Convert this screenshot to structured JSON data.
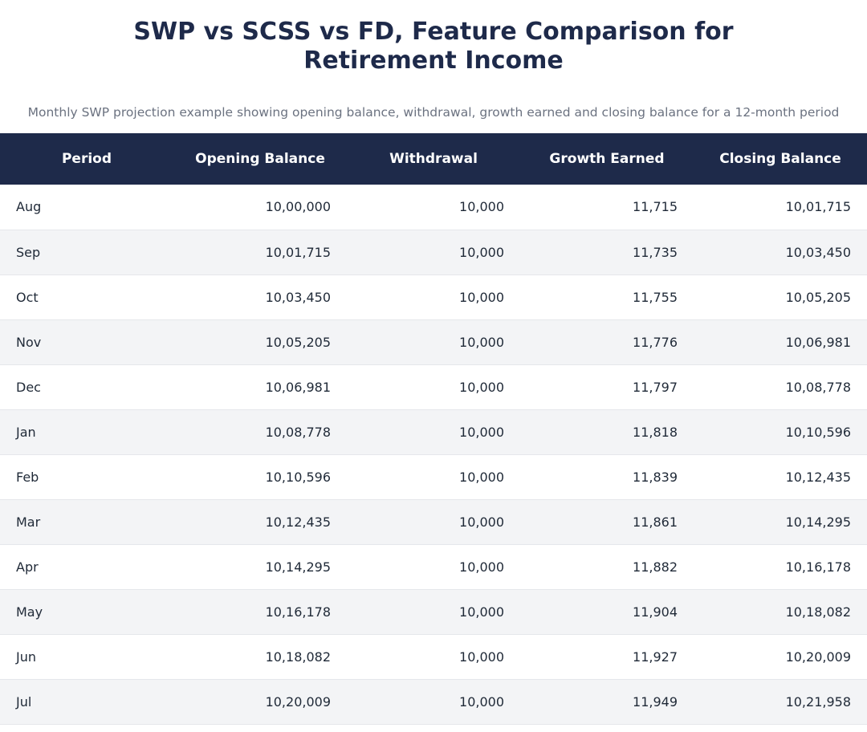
{
  "title_lines": [
    "SWP vs SCSS vs FD, Feature Comparison for",
    "Retirement Income"
  ],
  "subtitle": "Monthly SWP projection example showing opening balance, withdrawal, growth earned and closing balance for a 12-month period",
  "colors": {
    "header_bg": "#1e2a4a",
    "title": "#1e2a4a",
    "subtitle": "#6b7280",
    "row_alt": "#f3f4f6"
  },
  "chart_data": {
    "type": "table",
    "columns": [
      "Period",
      "Opening Balance",
      "Withdrawal",
      "Growth Earned",
      "Closing Balance"
    ],
    "rows": [
      [
        "Aug",
        "10,00,000",
        "10,000",
        "11,715",
        "10,01,715"
      ],
      [
        "Sep",
        "10,01,715",
        "10,000",
        "11,735",
        "10,03,450"
      ],
      [
        "Oct",
        "10,03,450",
        "10,000",
        "11,755",
        "10,05,205"
      ],
      [
        "Nov",
        "10,05,205",
        "10,000",
        "11,776",
        "10,06,981"
      ],
      [
        "Dec",
        "10,06,981",
        "10,000",
        "11,797",
        "10,08,778"
      ],
      [
        "Jan",
        "10,08,778",
        "10,000",
        "11,818",
        "10,10,596"
      ],
      [
        "Feb",
        "10,10,596",
        "10,000",
        "11,839",
        "10,12,435"
      ],
      [
        "Mar",
        "10,12,435",
        "10,000",
        "11,861",
        "10,14,295"
      ],
      [
        "Apr",
        "10,14,295",
        "10,000",
        "11,882",
        "10,16,178"
      ],
      [
        "May",
        "10,16,178",
        "10,000",
        "11,904",
        "10,18,082"
      ],
      [
        "Jun",
        "10,18,082",
        "10,000",
        "11,927",
        "10,20,009"
      ],
      [
        "Jul",
        "10,20,009",
        "10,000",
        "11,949",
        "10,21,958"
      ]
    ]
  }
}
